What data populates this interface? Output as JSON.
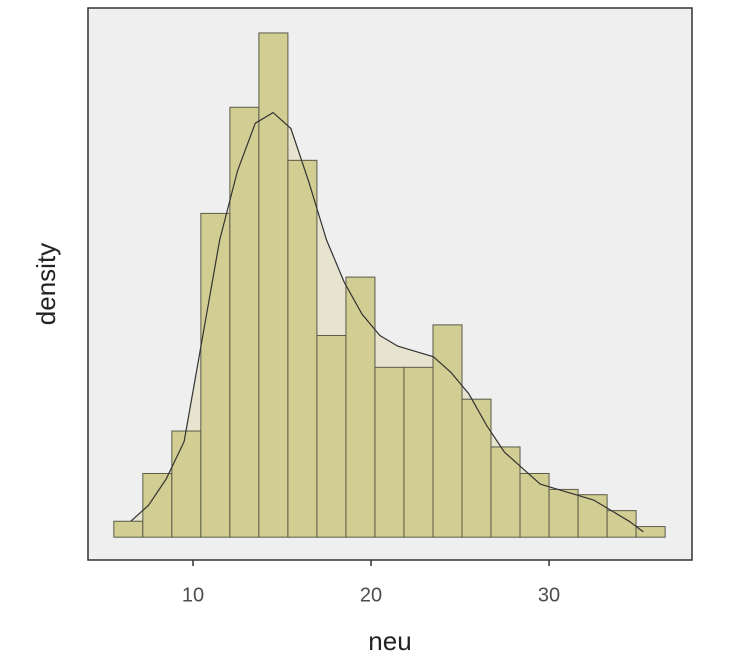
{
  "chart_data": {
    "type": "histogram",
    "x_label": "neu",
    "y_label": "density",
    "bins": [
      5.55,
      7.18,
      8.81,
      10.44,
      12.07,
      13.7,
      15.33,
      16.96,
      18.59,
      20.22,
      21.85,
      23.48,
      25.11,
      26.74,
      28.37,
      30.0,
      31.63,
      33.26,
      34.89,
      36.52
    ],
    "values": [
      0.003,
      0.012,
      0.02,
      0.061,
      0.081,
      0.095,
      0.071,
      0.038,
      0.049,
      0.032,
      0.032,
      0.04,
      0.026,
      0.017,
      0.012,
      0.009,
      0.008,
      0.005,
      0.002
    ],
    "color": "#d2cd93",
    "density": {
      "x": [
        6.5,
        7.5,
        8.5,
        9.5,
        10.5,
        11.5,
        12.5,
        13.5,
        14.5,
        15.5,
        16.5,
        17.5,
        18.5,
        19.5,
        20.5,
        21.5,
        22.5,
        23.5,
        24.5,
        25.5,
        26.5,
        27.5,
        28.5,
        29.5,
        30.5,
        31.5,
        32.5,
        33.5,
        34.5,
        35.3
      ],
      "y": [
        0.003,
        0.006,
        0.011,
        0.018,
        0.037,
        0.056,
        0.069,
        0.078,
        0.08,
        0.077,
        0.067,
        0.056,
        0.048,
        0.042,
        0.038,
        0.036,
        0.035,
        0.034,
        0.031,
        0.027,
        0.021,
        0.016,
        0.013,
        0.01,
        0.009,
        0.008,
        0.007,
        0.005,
        0.003,
        0.001
      ],
      "color": "#e6e3cf"
    },
    "xlim": [
      4.1,
      38.03
    ],
    "xticks": [
      10,
      20,
      30
    ],
    "ylim": [
      -0.0043,
      0.0997
    ]
  }
}
